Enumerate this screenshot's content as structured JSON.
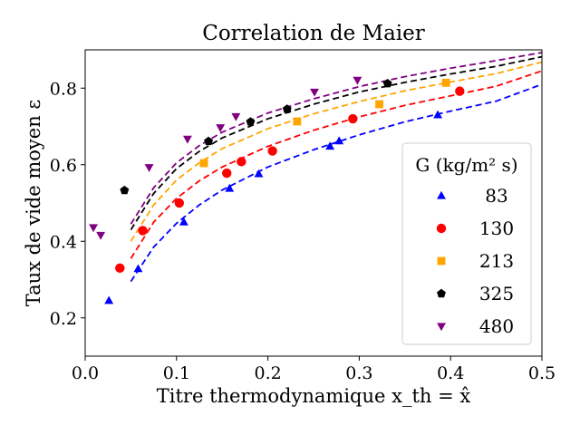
{
  "chart_data": {
    "type": "scatter",
    "title": "Correlation de Maier",
    "xlabel": "Titre thermodynamique x_th = x̂",
    "ylabel": "Taux de vide moyen ε",
    "xlim": [
      0.0,
      0.5
    ],
    "ylim": [
      0.1,
      0.9
    ],
    "xticks": [
      0.0,
      0.1,
      0.2,
      0.3,
      0.4,
      0.5
    ],
    "xtick_labels": [
      "0.0",
      "0.1",
      "0.2",
      "0.3",
      "0.4",
      "0.5"
    ],
    "yticks": [
      0.2,
      0.4,
      0.6,
      0.8
    ],
    "ytick_labels": [
      "0.2",
      "0.4",
      "0.6",
      "0.8"
    ],
    "grid": false,
    "legend": {
      "title": "G (kg/m² s)",
      "placement": "center-right"
    },
    "series": [
      {
        "name": "83",
        "color": "#0000ff",
        "marker": "triangle-up",
        "points": [
          [
            0.026,
            0.245
          ],
          [
            0.058,
            0.328
          ],
          [
            0.108,
            0.45
          ],
          [
            0.158,
            0.538
          ],
          [
            0.19,
            0.576
          ],
          [
            0.268,
            0.648
          ],
          [
            0.278,
            0.662
          ],
          [
            0.386,
            0.73
          ]
        ],
        "fit": [
          [
            0.05,
            0.295
          ],
          [
            0.075,
            0.385
          ],
          [
            0.1,
            0.447
          ],
          [
            0.125,
            0.495
          ],
          [
            0.15,
            0.534
          ],
          [
            0.2,
            0.594
          ],
          [
            0.25,
            0.639
          ],
          [
            0.3,
            0.678
          ],
          [
            0.35,
            0.712
          ],
          [
            0.4,
            0.74
          ],
          [
            0.45,
            0.766
          ],
          [
            0.5,
            0.81
          ]
        ]
      },
      {
        "name": "130",
        "color": "#ff0000",
        "marker": "circle",
        "points": [
          [
            0.038,
            0.33
          ],
          [
            0.063,
            0.428
          ],
          [
            0.103,
            0.5
          ],
          [
            0.155,
            0.578
          ],
          [
            0.171,
            0.608
          ],
          [
            0.205,
            0.636
          ],
          [
            0.293,
            0.72
          ],
          [
            0.41,
            0.792
          ]
        ],
        "fit": [
          [
            0.05,
            0.355
          ],
          [
            0.075,
            0.45
          ],
          [
            0.1,
            0.512
          ],
          [
            0.125,
            0.558
          ],
          [
            0.15,
            0.594
          ],
          [
            0.2,
            0.648
          ],
          [
            0.25,
            0.69
          ],
          [
            0.3,
            0.725
          ],
          [
            0.35,
            0.755
          ],
          [
            0.4,
            0.78
          ],
          [
            0.45,
            0.805
          ],
          [
            0.5,
            0.845
          ]
        ]
      },
      {
        "name": "213",
        "color": "#ffa500",
        "marker": "square",
        "points": [
          [
            0.13,
            0.604
          ],
          [
            0.232,
            0.713
          ],
          [
            0.322,
            0.758
          ],
          [
            0.395,
            0.814
          ]
        ],
        "fit": [
          [
            0.05,
            0.4
          ],
          [
            0.075,
            0.495
          ],
          [
            0.1,
            0.56
          ],
          [
            0.125,
            0.605
          ],
          [
            0.15,
            0.642
          ],
          [
            0.2,
            0.694
          ],
          [
            0.25,
            0.733
          ],
          [
            0.3,
            0.765
          ],
          [
            0.35,
            0.793
          ],
          [
            0.4,
            0.816
          ],
          [
            0.45,
            0.838
          ],
          [
            0.5,
            0.868
          ]
        ]
      },
      {
        "name": "325",
        "color": "#000000",
        "marker": "pentagon",
        "points": [
          [
            0.043,
            0.533
          ],
          [
            0.135,
            0.661
          ],
          [
            0.181,
            0.712
          ],
          [
            0.221,
            0.745
          ],
          [
            0.331,
            0.812
          ]
        ],
        "fit": [
          [
            0.05,
            0.43
          ],
          [
            0.075,
            0.525
          ],
          [
            0.1,
            0.59
          ],
          [
            0.125,
            0.635
          ],
          [
            0.15,
            0.67
          ],
          [
            0.2,
            0.72
          ],
          [
            0.25,
            0.758
          ],
          [
            0.3,
            0.79
          ],
          [
            0.35,
            0.815
          ],
          [
            0.4,
            0.837
          ],
          [
            0.45,
            0.857
          ],
          [
            0.5,
            0.882
          ]
        ]
      },
      {
        "name": "480",
        "color": "#800080",
        "marker": "triangle-down",
        "points": [
          [
            0.009,
            0.436
          ],
          [
            0.017,
            0.416
          ],
          [
            0.07,
            0.593
          ],
          [
            0.112,
            0.667
          ],
          [
            0.148,
            0.697
          ],
          [
            0.165,
            0.726
          ],
          [
            0.251,
            0.79
          ],
          [
            0.298,
            0.821
          ]
        ],
        "fit": [
          [
            0.05,
            0.445
          ],
          [
            0.075,
            0.54
          ],
          [
            0.1,
            0.605
          ],
          [
            0.125,
            0.65
          ],
          [
            0.15,
            0.685
          ],
          [
            0.2,
            0.735
          ],
          [
            0.25,
            0.772
          ],
          [
            0.3,
            0.804
          ],
          [
            0.35,
            0.83
          ],
          [
            0.4,
            0.852
          ],
          [
            0.45,
            0.872
          ],
          [
            0.5,
            0.893
          ]
        ]
      }
    ]
  }
}
